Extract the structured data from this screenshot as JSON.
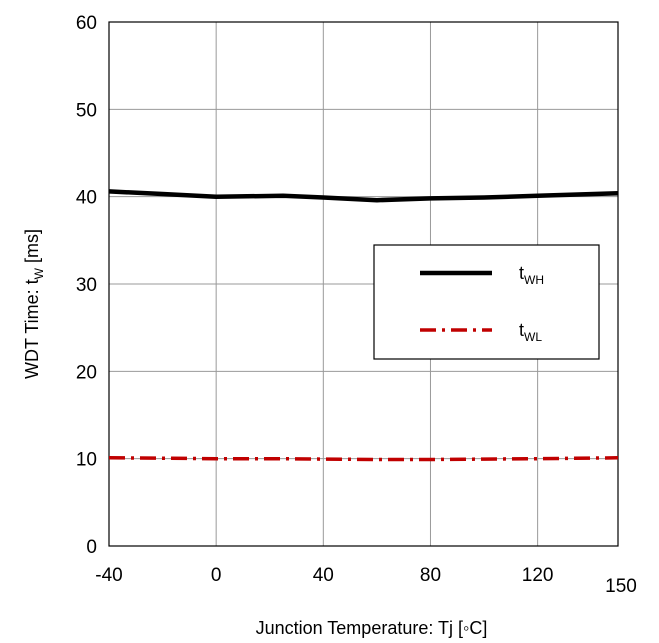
{
  "chart_data": {
    "type": "line",
    "xlabel": "Junction Temperature: Tj [◦C]",
    "ylabel": {
      "prefix": "WDT Time: t",
      "sub": "W",
      "suffix": " [ms]"
    },
    "xlim": [
      -40,
      150
    ],
    "ylim": [
      0,
      60
    ],
    "xticks": [
      -40,
      0,
      40,
      80,
      120
    ],
    "xtick_labels": [
      "-40",
      "0",
      "40",
      "80",
      "120"
    ],
    "x_end_label": "150",
    "yticks": [
      0,
      10,
      20,
      30,
      40,
      50,
      60
    ],
    "ytick_labels": [
      "0",
      "10",
      "20",
      "30",
      "40",
      "50",
      "60"
    ],
    "grid": true,
    "legend_position": "right",
    "series": [
      {
        "name": {
          "base": "t",
          "sub": "WH"
        },
        "color": "#000000",
        "style": "solid",
        "x": [
          -40,
          -20,
          0,
          25,
          40,
          60,
          80,
          100,
          120,
          150
        ],
        "y": [
          40.6,
          40.3,
          40.0,
          40.1,
          39.9,
          39.6,
          39.8,
          39.9,
          40.1,
          40.4
        ]
      },
      {
        "name": {
          "base": "t",
          "sub": "WL"
        },
        "color": "#c00000",
        "style": "dash-dot",
        "x": [
          -40,
          -20,
          0,
          25,
          40,
          60,
          80,
          100,
          120,
          150
        ],
        "y": [
          10.1,
          10.05,
          10.0,
          10.0,
          9.95,
          9.9,
          9.9,
          9.95,
          10.0,
          10.1
        ]
      }
    ]
  }
}
